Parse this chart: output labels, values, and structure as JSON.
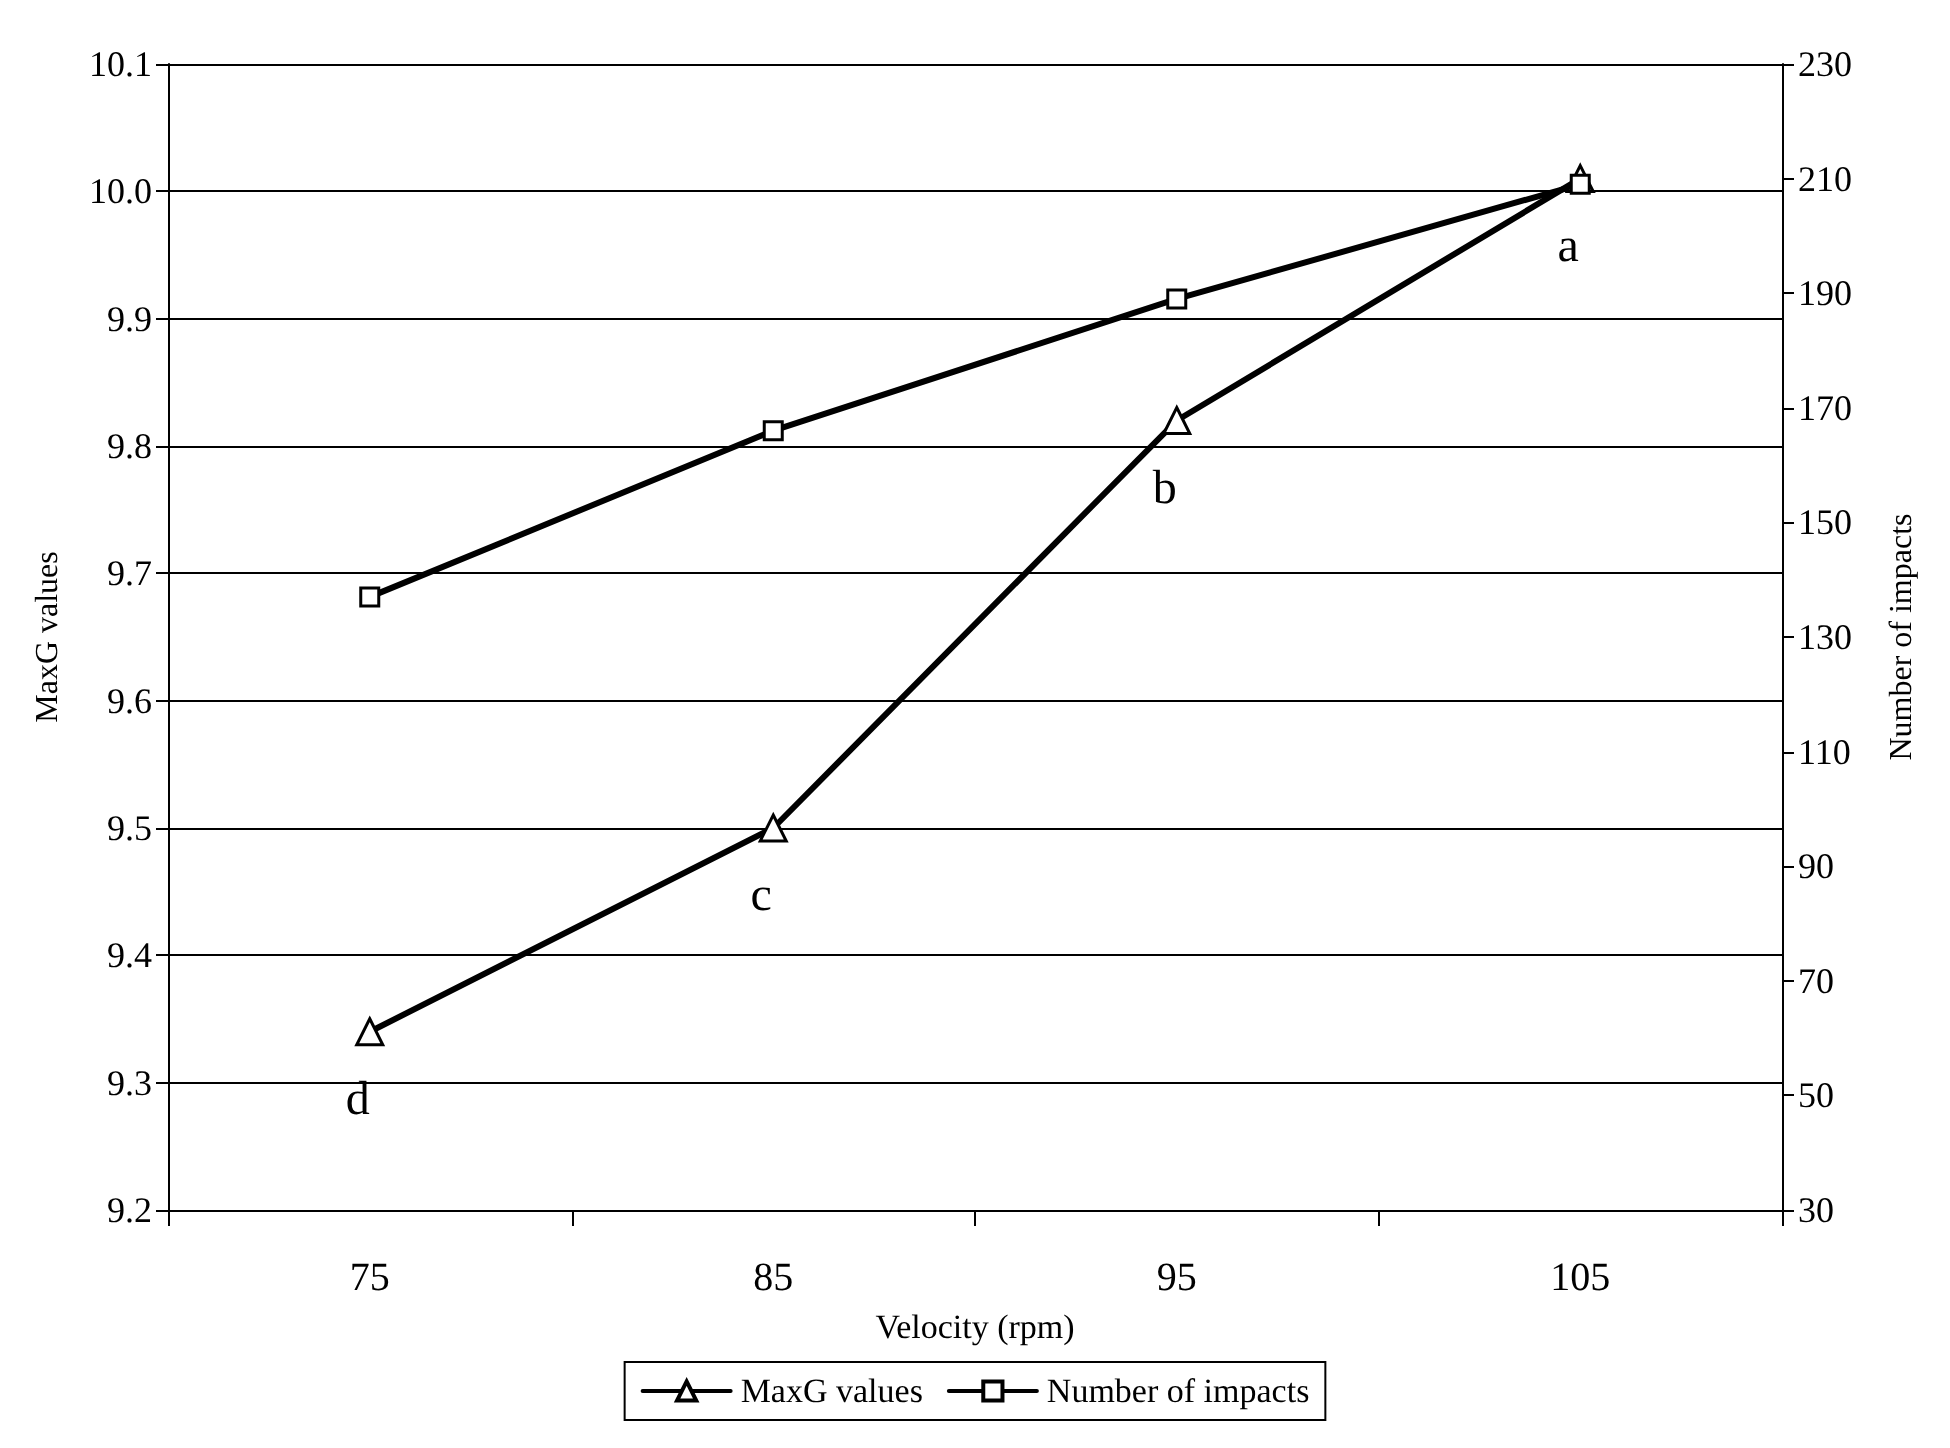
{
  "chart_data": {
    "type": "line",
    "xlabel": "Velocity (rpm)",
    "ylabel": "MaxG values",
    "y2label": "Number of impacts",
    "categories": [
      "75",
      "85",
      "95",
      "105"
    ],
    "series": [
      {
        "name": "MaxG values",
        "color": "#000000",
        "marker": "triangle",
        "values": [
          9.34,
          9.5,
          9.82,
          10.01
        ]
      },
      {
        "name": "Number of impacts",
        "color": "#000000",
        "marker": "square",
        "axis": "y2",
        "values": [
          137,
          166,
          189,
          209
        ]
      }
    ],
    "ylim": [
      9.2,
      10.1
    ],
    "yticks": [
      9.2,
      9.3,
      9.4,
      9.5,
      9.6,
      9.7,
      9.8,
      9.9,
      {
        "value": 10,
        "label": "10.0"
      },
      10.1
    ],
    "y2lim": [
      30,
      230
    ],
    "y2ticks": [
      30,
      50,
      70,
      90,
      110,
      130,
      150,
      170,
      190,
      210,
      230
    ],
    "grid": "y",
    "legend": "bottom",
    "line_style": "solid",
    "annotations": [
      {
        "text": "a",
        "x": "105",
        "y": 10.01
      },
      {
        "text": "b",
        "x": "95",
        "y": 9.82
      },
      {
        "text": "c",
        "x": "85",
        "y": 9.5
      },
      {
        "text": "d",
        "x": "75",
        "y": 9.34
      }
    ]
  }
}
